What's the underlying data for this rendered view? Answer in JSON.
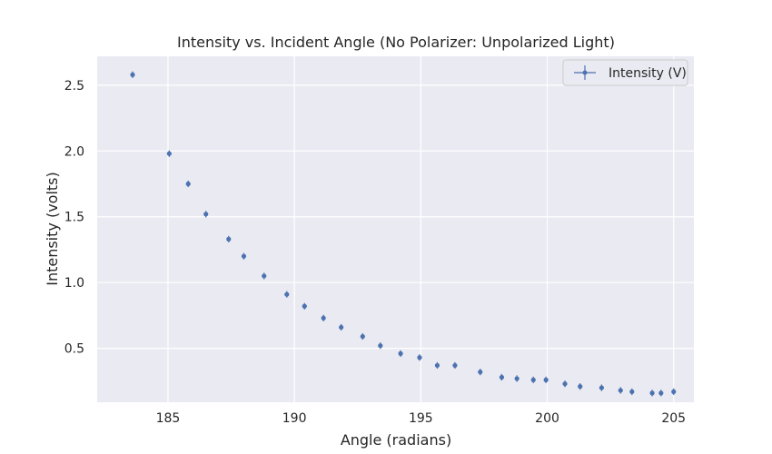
{
  "chart_data": {
    "type": "scatter",
    "title": "Intensity vs. Incident Angle (No Polarizer: Unpolarized Light)",
    "xlabel": "Angle (radians)",
    "ylabel": "Intensity (volts)",
    "xlim": [
      182.2,
      205.8
    ],
    "ylim": [
      0.09,
      2.72
    ],
    "xticks": [
      185,
      190,
      195,
      200,
      205
    ],
    "xtick_labels": [
      "185",
      "190",
      "195",
      "200",
      "205"
    ],
    "yticks": [
      0.5,
      1.0,
      1.5,
      2.0,
      2.5
    ],
    "ytick_labels": [
      "0.5",
      "1.0",
      "1.5",
      "2.0",
      "2.5"
    ],
    "grid": true,
    "legend": {
      "position": "top-right",
      "entries": [
        "Intensity (V)"
      ]
    },
    "colors": {
      "background": "#eaeaf2",
      "grid": "#ffffff",
      "series": "#4c72b0"
    },
    "series": [
      {
        "name": "Intensity (V)",
        "yerr": 0.025,
        "x": [
          183.6,
          185.05,
          185.8,
          186.5,
          187.4,
          188.0,
          188.8,
          189.7,
          190.4,
          191.15,
          191.85,
          192.7,
          193.4,
          194.2,
          194.95,
          195.65,
          196.35,
          197.35,
          198.2,
          198.8,
          199.45,
          199.95,
          200.7,
          201.3,
          202.15,
          202.9,
          203.35,
          204.15,
          204.5,
          205.0
        ],
        "y": [
          2.58,
          1.98,
          1.75,
          1.52,
          1.33,
          1.2,
          1.05,
          0.91,
          0.82,
          0.73,
          0.66,
          0.59,
          0.52,
          0.46,
          0.43,
          0.37,
          0.37,
          0.32,
          0.28,
          0.27,
          0.26,
          0.26,
          0.23,
          0.21,
          0.2,
          0.18,
          0.17,
          0.16,
          0.16,
          0.17
        ]
      }
    ]
  }
}
